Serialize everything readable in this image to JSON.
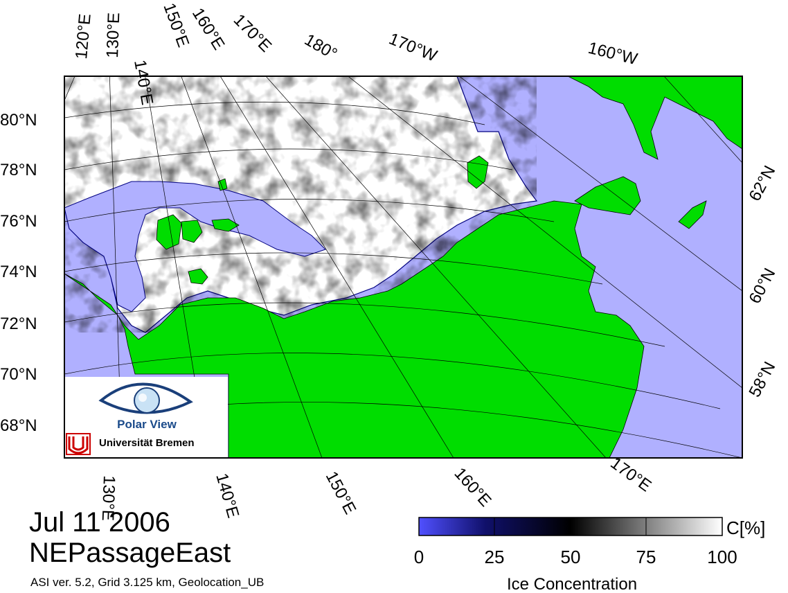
{
  "map": {
    "date": "Jul 11 2006",
    "region": "NEPassageEast",
    "info": "ASI ver. 5.2,  Grid 3.125 km, Geolocation_UB",
    "colors": {
      "water": "#b0b0ff",
      "land": "#00dd00",
      "coast": "#000080",
      "frame": "#000000"
    }
  },
  "lat_labels": {
    "left": [
      "80°N",
      "78°N",
      "76°N",
      "74°N",
      "72°N",
      "70°N",
      "68°N"
    ],
    "right": [
      "62°N",
      "60°N",
      "58°N"
    ]
  },
  "lon_labels": {
    "top": [
      "120°E",
      "130°E",
      "140°E",
      "150°E",
      "160°E",
      "170°E",
      "180°",
      "170°W",
      "160°W"
    ],
    "bottom": [
      "130°E",
      "140°E",
      "150°E",
      "160°E",
      "170°E"
    ]
  },
  "logo": {
    "name": "Polar View",
    "institution": "Universität Bremen"
  },
  "colorbar": {
    "unit": "C[%]",
    "title": "Ice Concentration",
    "range": [
      0,
      100
    ],
    "ticks": [
      "0",
      "25",
      "50",
      "75",
      "100"
    ],
    "stops": [
      "#5050ff",
      "#000050",
      "#000000",
      "#808080",
      "#ffffff"
    ]
  }
}
